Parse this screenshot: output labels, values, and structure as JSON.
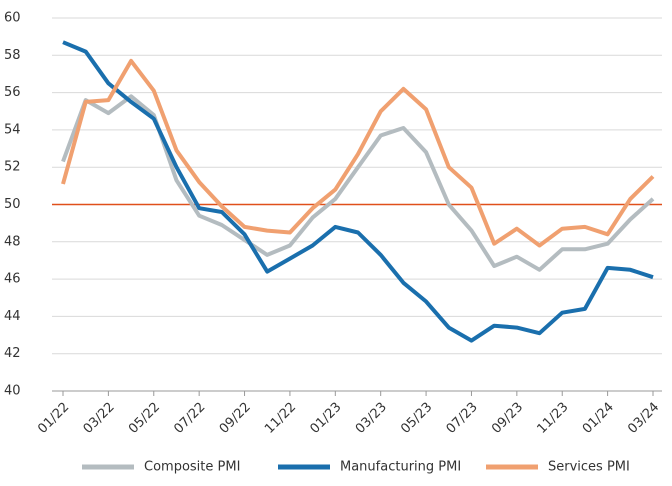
{
  "chart_data": {
    "type": "line",
    "categories": [
      "01/22",
      null,
      "03/22",
      null,
      "05/22",
      null,
      "07/22",
      null,
      "09/22",
      null,
      "11/22",
      null,
      "01/23",
      null,
      "03/23",
      null,
      "05/23",
      null,
      "07/23",
      null,
      "09/23",
      null,
      "11/23",
      null,
      "01/24",
      null,
      "03/24"
    ],
    "series": [
      {
        "name": "Composite PMI",
        "color": "#b4bcc0",
        "values": [
          52.3,
          55.6,
          54.9,
          55.8,
          54.8,
          51.3,
          49.4,
          48.9,
          48.1,
          47.3,
          47.8,
          49.3,
          50.3,
          52.0,
          53.7,
          54.1,
          52.8,
          50.0,
          48.6,
          46.7,
          47.2,
          46.5,
          47.6,
          47.6,
          47.9,
          49.2,
          50.3
        ]
      },
      {
        "name": "Manufacturing PMI",
        "color": "#1a6fad",
        "values": [
          58.7,
          58.2,
          56.5,
          55.5,
          54.6,
          52.0,
          49.8,
          49.6,
          48.4,
          46.4,
          47.1,
          47.8,
          48.8,
          48.5,
          47.3,
          45.8,
          44.8,
          43.4,
          42.7,
          43.5,
          43.4,
          43.1,
          44.2,
          44.4,
          46.6,
          46.5,
          46.1
        ]
      },
      {
        "name": "Services PMI",
        "color": "#f0a070",
        "values": [
          51.1,
          55.5,
          55.6,
          57.7,
          56.1,
          52.9,
          51.2,
          49.9,
          48.8,
          48.6,
          48.5,
          49.8,
          50.8,
          52.7,
          55.0,
          56.2,
          55.1,
          52.0,
          50.9,
          47.9,
          48.7,
          47.8,
          48.7,
          48.8,
          48.4,
          50.3,
          51.5
        ]
      }
    ],
    "ylim": [
      40,
      60
    ],
    "yticks": [
      40,
      42,
      44,
      46,
      48,
      50,
      52,
      54,
      56,
      58,
      60
    ],
    "grid": true,
    "hline": {
      "value": 50,
      "color": "#e0501b"
    },
    "legend": "bottom"
  }
}
